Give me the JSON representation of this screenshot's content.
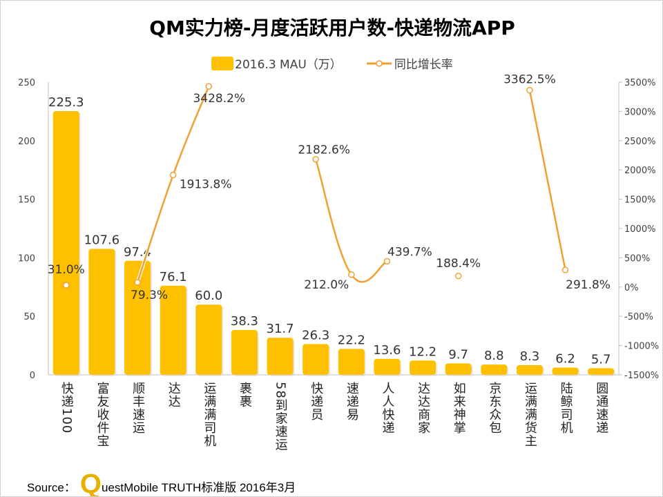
{
  "chart_data": {
    "type": "bar+line",
    "title": "QM实力榜-月度活跃用户数-快递物流APP",
    "categories": [
      "快递100",
      "富友收件宝",
      "顺丰速运",
      "达达",
      "运满满司机",
      "裹裹",
      "58到家速运",
      "快递员",
      "速递易",
      "人人快递",
      "达达商家",
      "如来神掌",
      "京东众包",
      "运满满货主",
      "陆鲸司机",
      "圆通速递"
    ],
    "series": [
      {
        "name": "2016.3 MAU（万）",
        "type": "bar",
        "axis": "left",
        "color": "#FFC000",
        "values": [
          225.3,
          107.6,
          97.4,
          76.1,
          60.0,
          38.3,
          31.7,
          26.3,
          22.2,
          13.6,
          12.2,
          9.7,
          8.8,
          8.3,
          6.2,
          5.7
        ],
        "labels": [
          "225.3",
          "107.6",
          "97.4",
          "76.1",
          "60.0",
          "38.3",
          "31.7",
          "26.3",
          "22.2",
          "13.6",
          "12.2",
          "9.7",
          "8.8",
          "8.3",
          "6.2",
          "5.7"
        ]
      },
      {
        "name": "同比增长率",
        "type": "line",
        "axis": "right",
        "color": "#F0A030",
        "unit": "%",
        "values": [
          31.0,
          null,
          79.3,
          1913.8,
          3428.2,
          null,
          null,
          2182.6,
          212.0,
          439.7,
          null,
          188.4,
          null,
          3362.5,
          291.8,
          null
        ],
        "labels": [
          "31.0%",
          null,
          "79.3%",
          "1913.8%",
          "3428.2%",
          null,
          null,
          "2182.6%",
          "212.0%",
          "439.7%",
          null,
          "188.4%",
          null,
          "3362.5%",
          "291.8%",
          null
        ]
      }
    ],
    "y_left": {
      "range": [
        0,
        250
      ],
      "ticks": [
        "0",
        "50",
        "100",
        "150",
        "200",
        "250"
      ]
    },
    "y_right": {
      "range": [
        -1500,
        3500
      ],
      "ticks": [
        "-1500%",
        "-1000%",
        "-500%",
        "0%",
        "500%",
        "1000%",
        "1500%",
        "2000%",
        "2500%",
        "3000%",
        "3500%"
      ]
    },
    "grid": false,
    "legend_placement": "top"
  },
  "source": {
    "prefix": "Source：",
    "logo_letter": "Q",
    "text": "uestMobile TRUTH标准版 2016年3月"
  }
}
